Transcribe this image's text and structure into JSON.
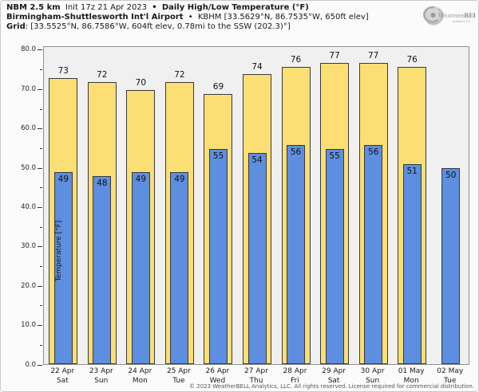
{
  "header": {
    "line1": {
      "model_bold": "NBM 2.5 km",
      "init_regular": "Init 17z 21 Apr 2023",
      "sep": "•",
      "product_bold": "Daily High/Low Temperature (°F)"
    },
    "line2": {
      "station_bold": "Birmingham-Shuttlesworth Int'l Airport",
      "sep": "•",
      "station_meta": "KBHM [33.5629°N, 86.7535°W, 650ft elev]"
    },
    "line3": {
      "grid_bold": "Grid",
      "grid_meta": ": [33.5525°N, 86.7586°W, 604ft elev, 0.78mi to the SSW (202.3)°]"
    },
    "logo_text": "WeatherBELL",
    "logo_sub": "Analytics LLC"
  },
  "chart_data": {
    "type": "bar",
    "title": "Daily High/Low Temperature (°F)",
    "xlabel": "",
    "ylabel": "Temperature [°F]",
    "ylim": [
      0,
      81
    ],
    "ytick_major_step": 10,
    "ytick_minor_step": 5,
    "grid": false,
    "legend": "none",
    "plot_bg": "#f0f0f0",
    "categories": [
      {
        "date": "22 Apr",
        "day": "Sat"
      },
      {
        "date": "23 Apr",
        "day": "Sun"
      },
      {
        "date": "24 Apr",
        "day": "Mon"
      },
      {
        "date": "25 Apr",
        "day": "Tue"
      },
      {
        "date": "26 Apr",
        "day": "Wed"
      },
      {
        "date": "27 Apr",
        "day": "Thu"
      },
      {
        "date": "28 Apr",
        "day": "Fri"
      },
      {
        "date": "29 Apr",
        "day": "Sat"
      },
      {
        "date": "30 Apr",
        "day": "Sun"
      },
      {
        "date": "01 May",
        "day": "Mon"
      },
      {
        "date": "02 May",
        "day": "Tue"
      }
    ],
    "series": [
      {
        "name": "Daily High",
        "color": "#fbdf75",
        "values": [
          73,
          72,
          70,
          72,
          69,
          74,
          76,
          77,
          77,
          76,
          null
        ]
      },
      {
        "name": "Daily Low",
        "color": "#5d8ee0",
        "values": [
          49,
          48,
          49,
          49,
          55,
          54,
          56,
          55,
          56,
          51,
          50
        ]
      }
    ]
  },
  "footer": {
    "copyright": "© 2023 WeatherBELL Analytics, LLC. All rights reserved. License required for commercial distribution."
  }
}
